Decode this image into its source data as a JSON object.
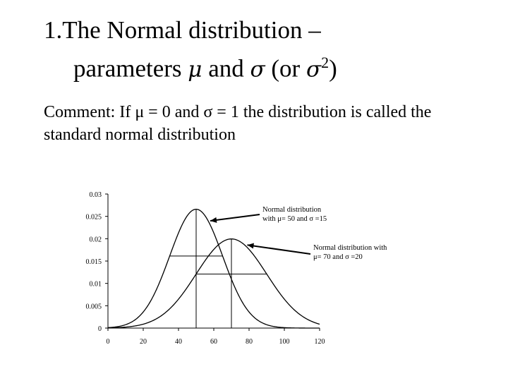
{
  "slide": {
    "title_line1": "1.The Normal distribution –",
    "title_line2_prefix": "parameters ",
    "mu_symbol": "μ",
    "and_word": " and ",
    "sigma_symbol": "σ",
    "or_prefix": " (or ",
    "sigma2_symbol": "σ",
    "superscript": "2",
    "close_paren": ")",
    "comment": "Comment: If μ = 0 and σ = 1 the distribution is called the standard normal distribution"
  },
  "chart_data": {
    "type": "line",
    "x_ticks": [
      0,
      20,
      40,
      60,
      80,
      100,
      120
    ],
    "y_ticks": [
      0,
      0.005,
      0.01,
      0.015,
      0.02,
      0.025,
      0.03
    ],
    "y_tick_labels": [
      "0",
      "0.005",
      "0.01",
      "0.015",
      "0.02",
      "0.025",
      "0.03"
    ],
    "xlim": [
      0,
      120
    ],
    "ylim": [
      0,
      0.03
    ],
    "grid": false,
    "series": [
      {
        "mu": 50,
        "sigma": 15
      },
      {
        "mu": 70,
        "sigma": 20
      }
    ],
    "annotations": [
      {
        "line1": "Normal distribution",
        "line2": "with μ= 50 and σ =15"
      },
      {
        "line1": "Normal distribution with",
        "line2": "μ= 70 and σ =20"
      }
    ]
  }
}
